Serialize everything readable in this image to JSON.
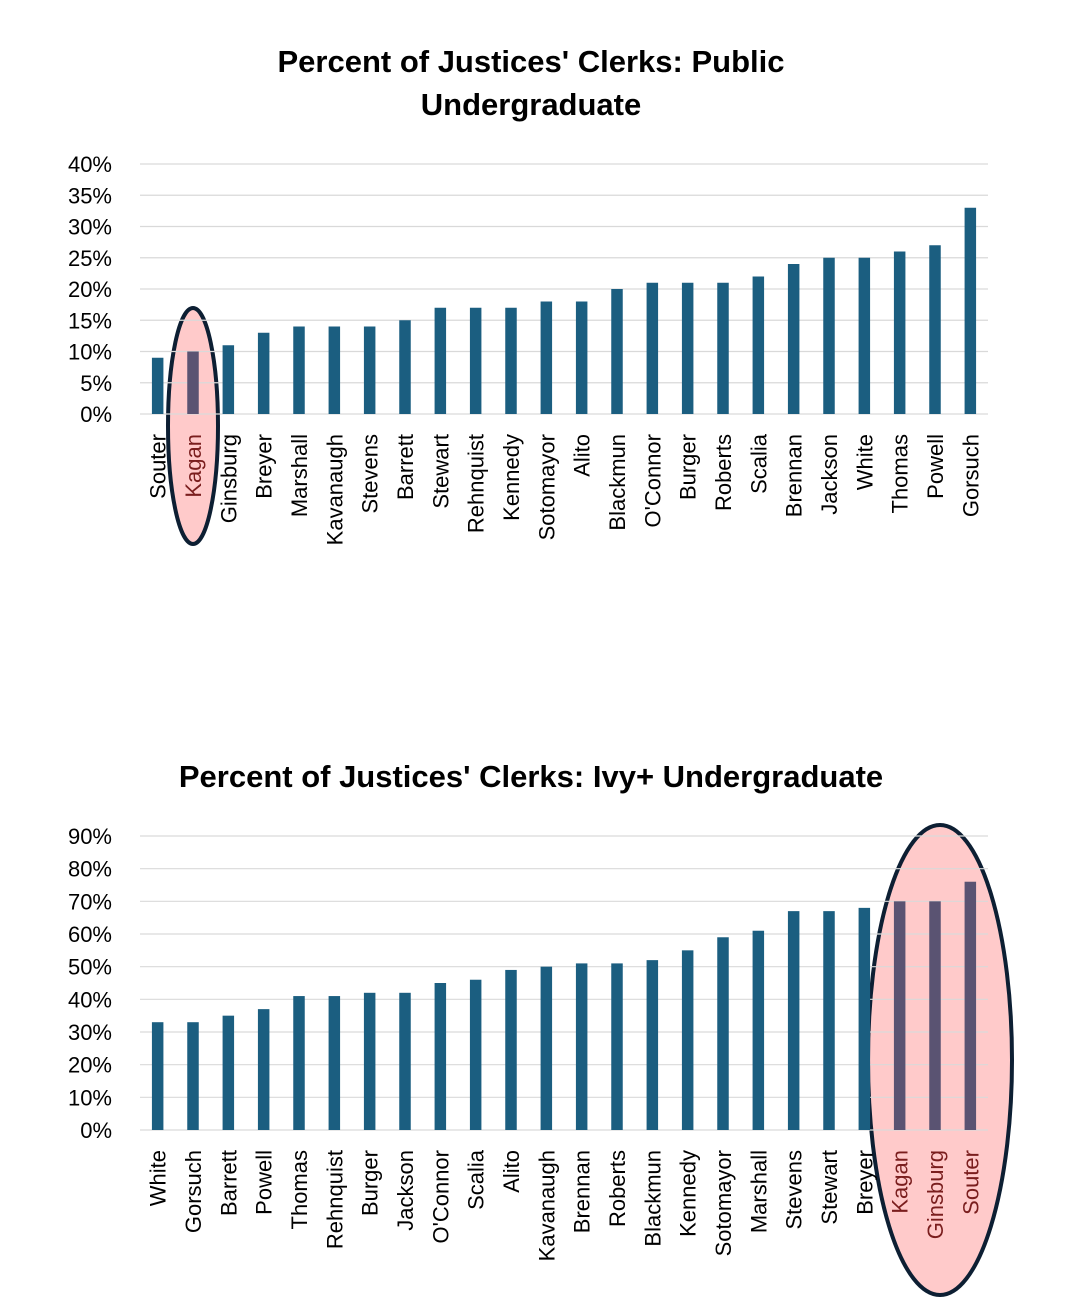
{
  "chart_data": [
    {
      "type": "bar",
      "title": "Percent of Justices' Clerks: Public Undergraduate",
      "title_lines": [
        "Percent of Justices' Clerks: Public",
        "Undergraduate"
      ],
      "categories": [
        "Souter",
        "Kagan",
        "Ginsburg",
        "Breyer",
        "Marshall",
        "Kavanaugh",
        "Stevens",
        "Barrett",
        "Stewart",
        "Rehnquist",
        "Kennedy",
        "Sotomayor",
        "Alito",
        "Blackmun",
        "O'Connor",
        "Burger",
        "Roberts",
        "Scalia",
        "Brennan",
        "Jackson",
        "White",
        "Thomas",
        "Powell",
        "Gorsuch"
      ],
      "values": [
        9,
        10,
        11,
        13,
        14,
        14,
        14,
        15,
        17,
        17,
        17,
        18,
        18,
        20,
        21,
        21,
        21,
        22,
        24,
        25,
        25,
        26,
        27,
        33
      ],
      "ylim": [
        0,
        40
      ],
      "yticks": [
        "0%",
        "5%",
        "10%",
        "15%",
        "20%",
        "25%",
        "30%",
        "35%",
        "40%"
      ],
      "xlabel": "",
      "ylabel": "",
      "highlighted": [
        "Kagan"
      ],
      "colors": {
        "bar": "#1b5e80",
        "highlight_bar": "#5a5372",
        "highlight_fill": "#ffcaca"
      }
    },
    {
      "type": "bar",
      "title": "Percent of Justices' Clerks: Ivy+ Undergraduate",
      "title_lines": [
        "Percent of Justices' Clerks: Ivy+ Undergraduate"
      ],
      "categories": [
        "White",
        "Gorsuch",
        "Barrett",
        "Powell",
        "Thomas",
        "Rehnquist",
        "Burger",
        "Jackson",
        "O'Connor",
        "Scalia",
        "Alito",
        "Kavanaugh",
        "Brennan",
        "Roberts",
        "Blackmun",
        "Kennedy",
        "Sotomayor",
        "Marshall",
        "Stevens",
        "Stewart",
        "Breyer",
        "Kagan",
        "Ginsburg",
        "Souter"
      ],
      "values": [
        33,
        33,
        35,
        37,
        41,
        41,
        42,
        42,
        45,
        46,
        49,
        50,
        51,
        51,
        52,
        55,
        59,
        61,
        67,
        67,
        68,
        70,
        70,
        76
      ],
      "ylim": [
        0,
        90
      ],
      "yticks": [
        "0%",
        "10%",
        "20%",
        "30%",
        "40%",
        "50%",
        "60%",
        "70%",
        "80%",
        "90%"
      ],
      "xlabel": "",
      "ylabel": "",
      "highlighted": [
        "Kagan",
        "Ginsburg",
        "Souter"
      ],
      "colors": {
        "bar": "#1b5e80",
        "highlight_bar": "#5a5372",
        "highlight_fill": "#ffcaca"
      }
    }
  ]
}
